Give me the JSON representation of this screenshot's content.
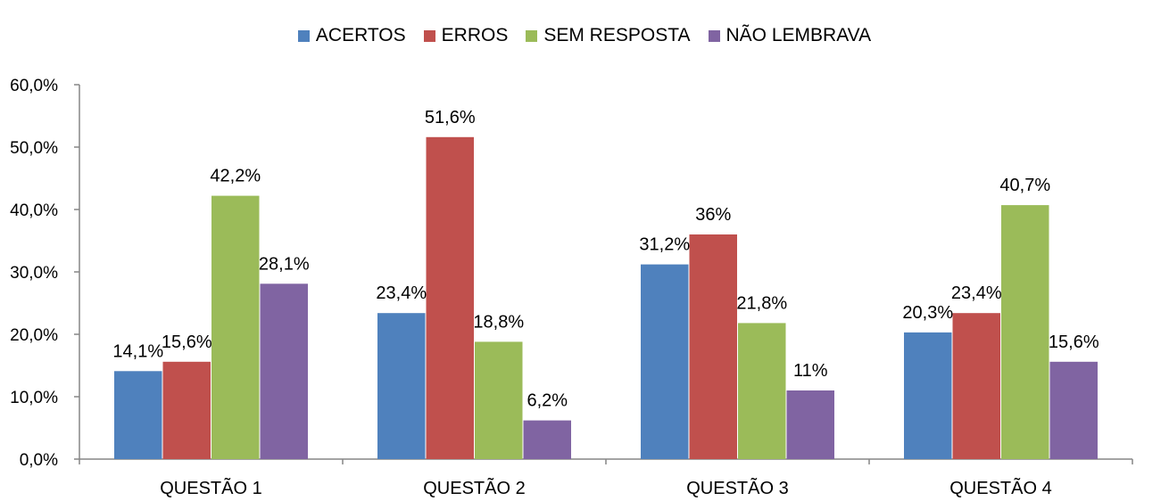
{
  "chart_data": {
    "type": "bar",
    "categories": [
      "QUESTÃO 1",
      "QUESTÃO 2",
      "QUESTÃO 3",
      "QUESTÃO 4"
    ],
    "series": [
      {
        "name": "ACERTOS",
        "color": "#4F81BD",
        "values": [
          14.1,
          23.4,
          31.2,
          20.3
        ],
        "labels": [
          "14,1%",
          "23,4%",
          "31,2%",
          "20,3%"
        ]
      },
      {
        "name": "ERROS",
        "color": "#C0504D",
        "values": [
          15.6,
          51.6,
          36,
          23.4
        ],
        "labels": [
          "15,6%",
          "51,6%",
          "36%",
          "23,4%"
        ]
      },
      {
        "name": "SEM RESPOSTA",
        "color": "#9BBB59",
        "values": [
          42.2,
          18.8,
          21.8,
          40.7
        ],
        "labels": [
          "42,2%",
          "18,8%",
          "21,8%",
          "40,7%"
        ]
      },
      {
        "name": "NÃO LEMBRAVA",
        "color": "#8064A2",
        "values": [
          28.1,
          6.2,
          11,
          15.6
        ],
        "labels": [
          "28,1%",
          "6,2%",
          "11%",
          "15,6%"
        ]
      }
    ],
    "yticks": [
      "0,0%",
      "10,0%",
      "20,0%",
      "30,0%",
      "40,0%",
      "50,0%",
      "60,0%"
    ],
    "ylim": [
      0,
      60
    ],
    "legend": "top",
    "grid": false
  }
}
